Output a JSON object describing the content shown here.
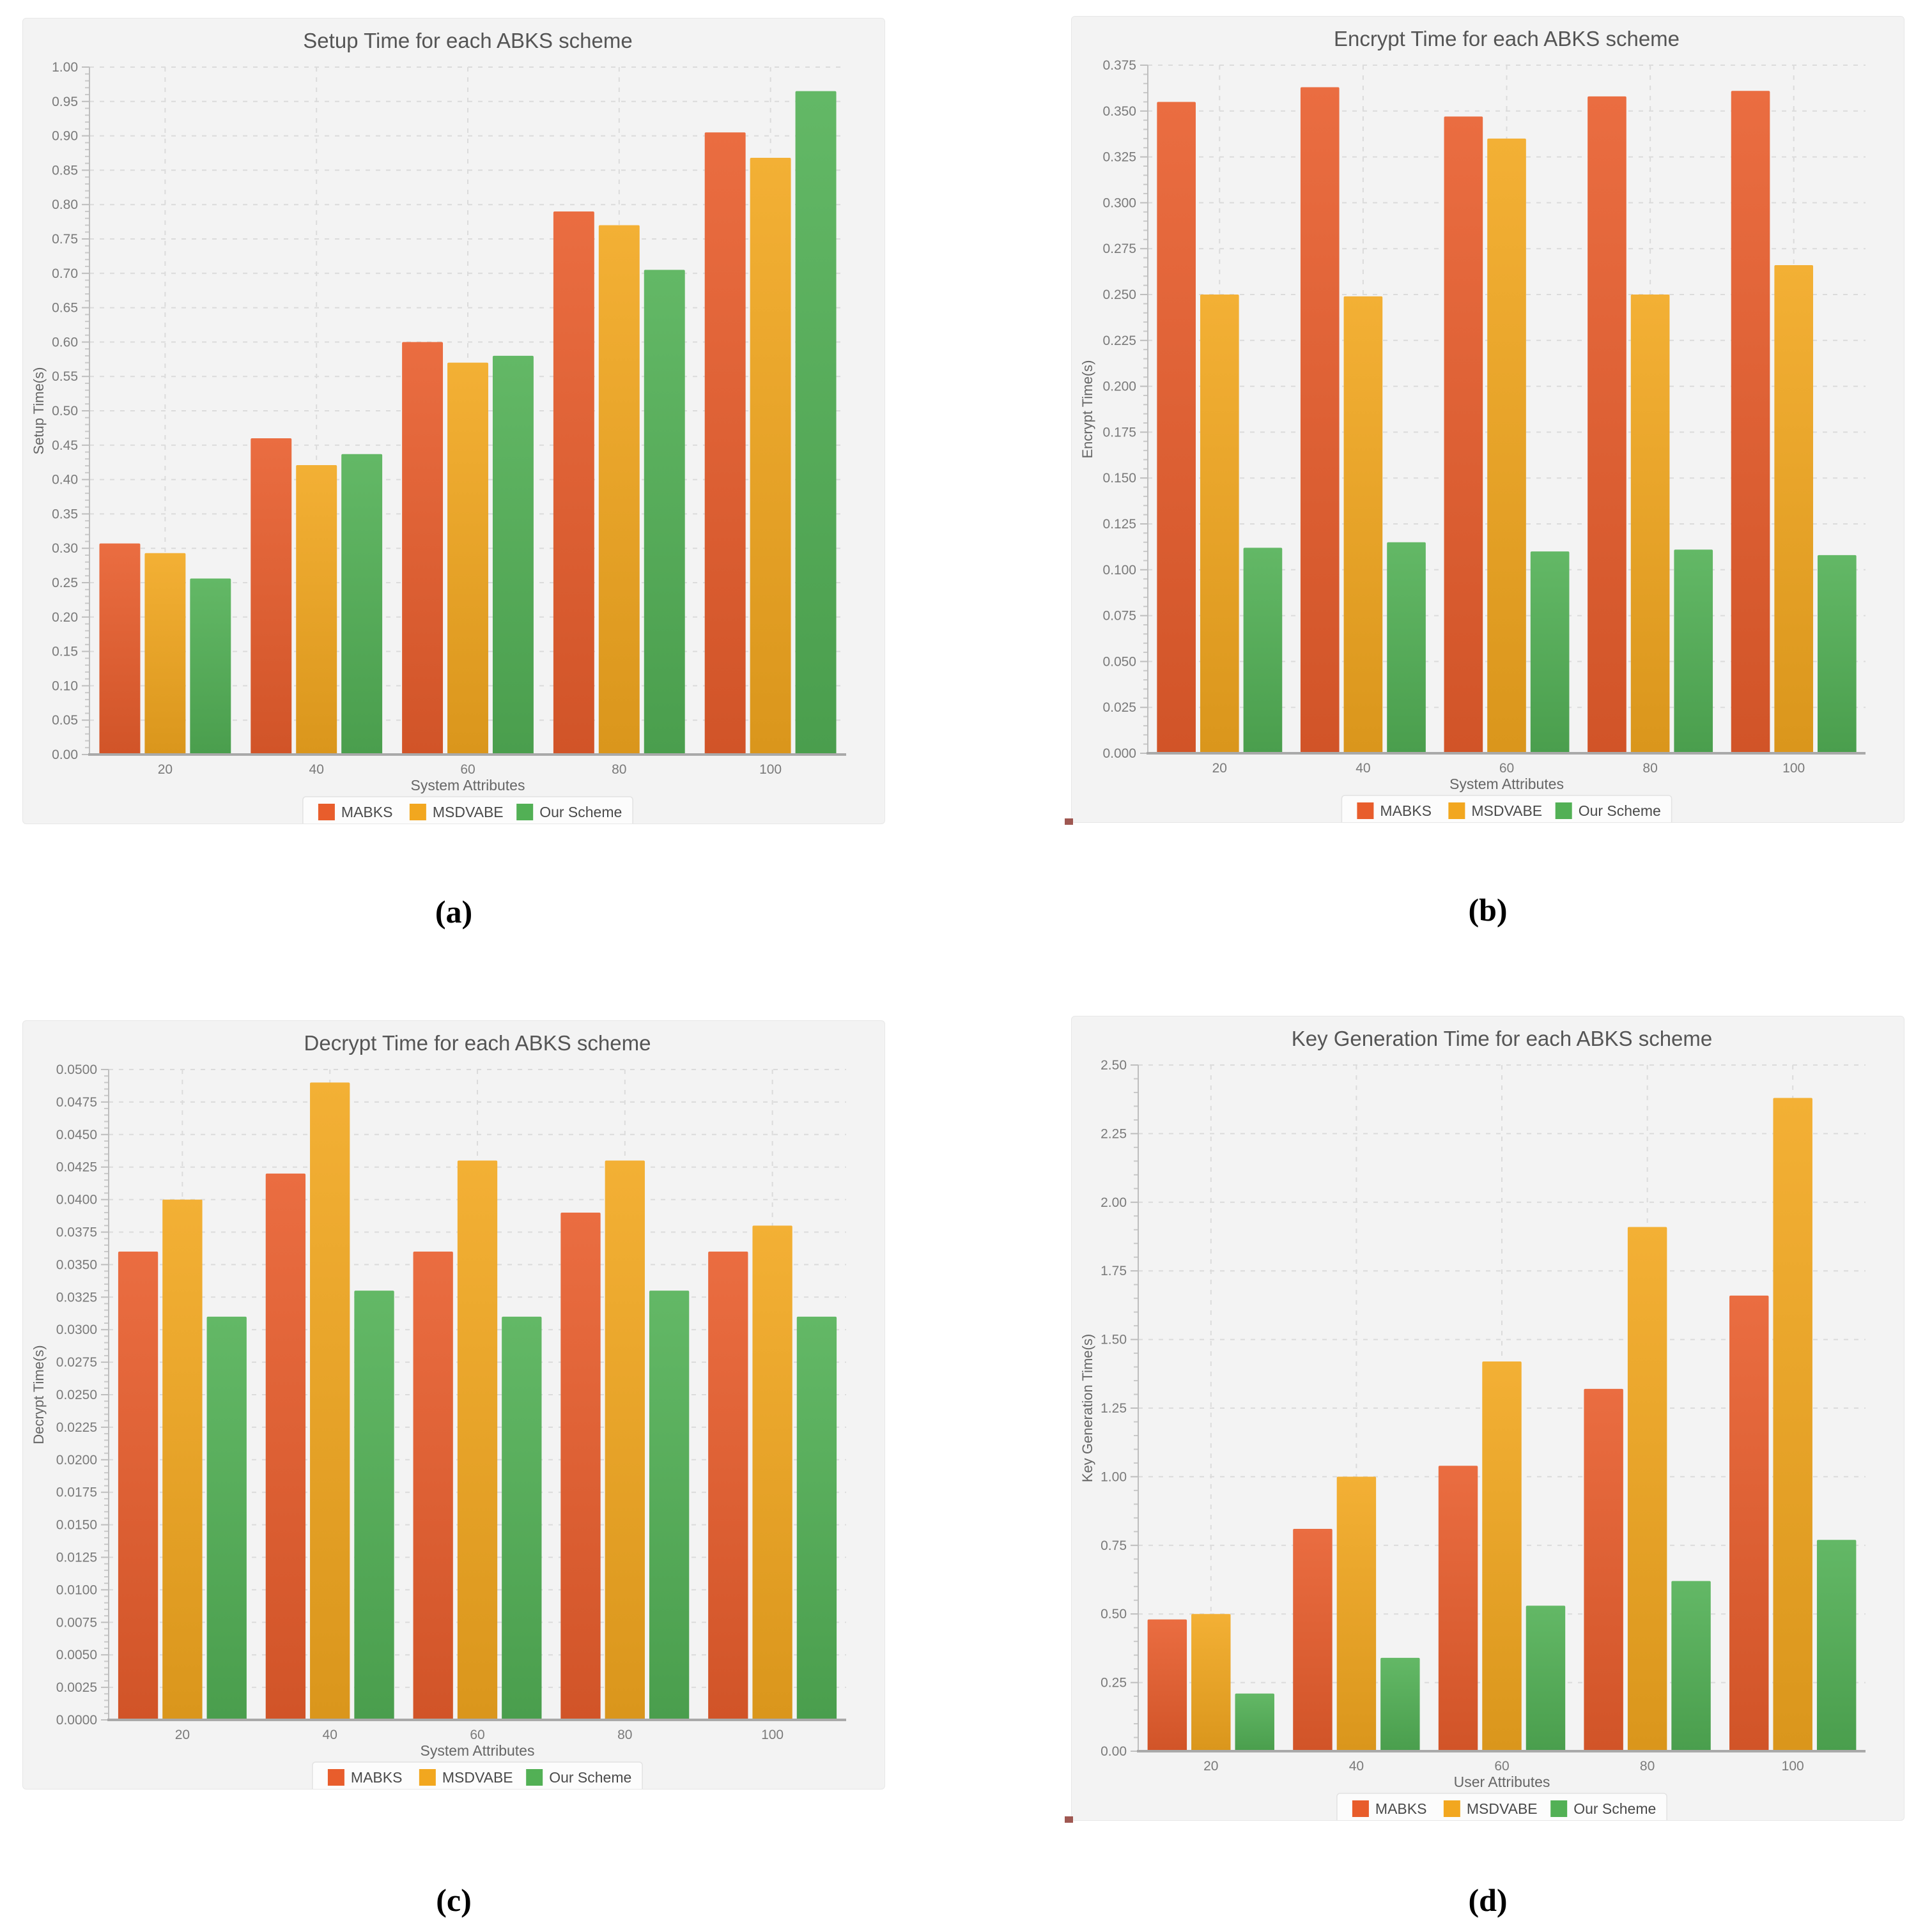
{
  "page": {
    "background": "#ffffff",
    "captions": {
      "a": "(a)",
      "b": "(b)",
      "c": "(c)",
      "d": "(d)"
    }
  },
  "theme": {
    "card_bg": "#F3F3F3",
    "grid_color": "#DBDBDB",
    "axis_color": "#BEBEBE",
    "baseline_color": "#A9A9A9",
    "minor_tick_color": "#C9C9C9",
    "title_color": "#555555",
    "tick_label_color": "#7A7A7A",
    "axis_label_color": "#666666",
    "legend_bg": "#FCFCFC",
    "legend_border": "#E2E2E2",
    "legend_text_color": "#4A4A4A",
    "series_colors": {
      "MABKS": "#E85D2C",
      "MSDVABE": "#F2A71F",
      "Our Scheme": "#52B055"
    },
    "corner_mark_color": "#8E3B34"
  },
  "chart_data": [
    {
      "id": "a",
      "type": "bar",
      "title": "Setup Time for each ABKS scheme",
      "xlabel": "System Attributes",
      "ylabel": "Setup Time(s)",
      "categories": [
        "20",
        "40",
        "60",
        "80",
        "100"
      ],
      "ylim": [
        0,
        1.0
      ],
      "ytick_step": 0.05,
      "y_decimals": 2,
      "grid": true,
      "legend_position": "bottom",
      "series": [
        {
          "name": "MABKS",
          "color": "#E85D2C",
          "values": [
            0.307,
            0.46,
            0.6,
            0.79,
            0.905
          ]
        },
        {
          "name": "MSDVABE",
          "color": "#F2A71F",
          "values": [
            0.293,
            0.421,
            0.57,
            0.77,
            0.868
          ]
        },
        {
          "name": "Our Scheme",
          "color": "#52B055",
          "values": [
            0.256,
            0.437,
            0.58,
            0.705,
            0.965
          ]
        }
      ]
    },
    {
      "id": "b",
      "type": "bar",
      "title": "Encrypt Time for each ABKS scheme",
      "xlabel": "System Attributes",
      "ylabel": "Encrypt Time(s)",
      "categories": [
        "20",
        "40",
        "60",
        "80",
        "100"
      ],
      "ylim": [
        0,
        0.375
      ],
      "ytick_step": 0.025,
      "y_decimals": 3,
      "grid": true,
      "legend_position": "bottom",
      "series": [
        {
          "name": "MABKS",
          "color": "#E85D2C",
          "values": [
            0.355,
            0.363,
            0.347,
            0.358,
            0.361
          ]
        },
        {
          "name": "MSDVABE",
          "color": "#F2A71F",
          "values": [
            0.25,
            0.249,
            0.335,
            0.25,
            0.266
          ]
        },
        {
          "name": "Our Scheme",
          "color": "#52B055",
          "values": [
            0.112,
            0.115,
            0.11,
            0.111,
            0.108
          ]
        }
      ]
    },
    {
      "id": "c",
      "type": "bar",
      "title": "Decrypt Time for each ABKS scheme",
      "xlabel": "System Attributes",
      "ylabel": "Decrypt Time(s)",
      "categories": [
        "20",
        "40",
        "60",
        "80",
        "100"
      ],
      "ylim": [
        0,
        0.05
      ],
      "ytick_step": 0.0025,
      "y_decimals": 4,
      "grid": true,
      "legend_position": "bottom",
      "series": [
        {
          "name": "MABKS",
          "color": "#E85D2C",
          "values": [
            0.036,
            0.042,
            0.036,
            0.039,
            0.036
          ]
        },
        {
          "name": "MSDVABE",
          "color": "#F2A71F",
          "values": [
            0.04,
            0.049,
            0.043,
            0.043,
            0.038
          ]
        },
        {
          "name": "Our Scheme",
          "color": "#52B055",
          "values": [
            0.031,
            0.033,
            0.031,
            0.033,
            0.031
          ]
        }
      ]
    },
    {
      "id": "d",
      "type": "bar",
      "title": "Key Generation Time for each ABKS scheme",
      "xlabel": "User Attributes",
      "ylabel": "Key Generation Time(s)",
      "categories": [
        "20",
        "40",
        "60",
        "80",
        "100"
      ],
      "ylim": [
        0,
        2.5
      ],
      "ytick_step": 0.25,
      "y_decimals": 2,
      "grid": true,
      "legend_position": "bottom",
      "series": [
        {
          "name": "MABKS",
          "color": "#E85D2C",
          "values": [
            0.48,
            0.81,
            1.04,
            1.32,
            1.66
          ]
        },
        {
          "name": "MSDVABE",
          "color": "#F2A71F",
          "values": [
            0.5,
            1.0,
            1.42,
            1.91,
            2.38
          ]
        },
        {
          "name": "Our Scheme",
          "color": "#52B055",
          "values": [
            0.21,
            0.34,
            0.53,
            0.62,
            0.77
          ]
        }
      ]
    }
  ]
}
